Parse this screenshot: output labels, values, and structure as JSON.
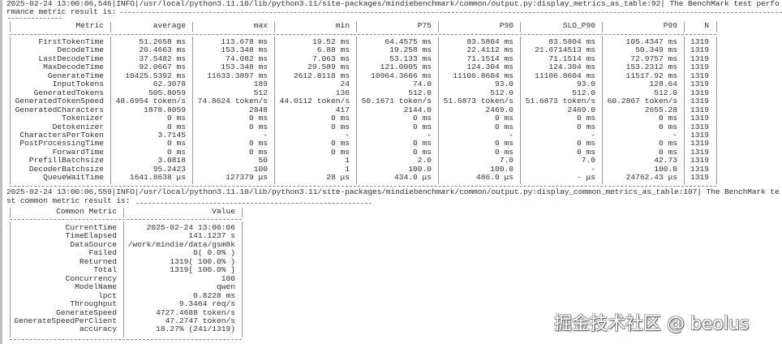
{
  "log_lines": {
    "metrics_log": "2025-02-24 13:00:06,546|INFO|/usr/local/python3.11.10/lib/python3.11/site-packages/mindiebenchmark/common/output.py:display_metrics_as_table:92| The BenchMark test perfo",
    "metrics_log_cont": "rmance metric result is:",
    "common_log": "2025-02-24 13:00:06,559|INFO|/usr/local/python3.11.10/lib/python3.11/site-packages/mindiebenchmark/common/output.py:display_common_metrics_as_table:107| The BenchMark te",
    "common_log_cont": "st common metric result is:"
  },
  "metrics_table": {
    "headers": [
      "Metric",
      "average",
      "max",
      "min",
      "P75",
      "P90",
      "SLO_P90",
      "P99",
      "N"
    ],
    "rows": [
      [
        "FirstTokenTime",
        "51.2658 ms",
        "113.678 ms",
        "19.52 ms",
        "64.4575 ms",
        "83.5804 ms",
        "83.5804 ms",
        "105.4347 ms",
        "1319"
      ],
      [
        "DecodeTime",
        "20.4663 ms",
        "153.348 ms",
        "6.88 ms",
        "19.258 ms",
        "22.4112 ms",
        "21.6714513 ms",
        "50.349 ms",
        "1319"
      ],
      [
        "LastDecodeTime",
        "37.5482 ms",
        "74.082 ms",
        "7.063 ms",
        "53.133 ms",
        "71.1514 ms",
        "71.1514 ms",
        "72.9757 ms",
        "1319"
      ],
      [
        "MaxDecodeTime",
        "92.0667 ms",
        "153.348 ms",
        "29.589 ms",
        "121.0005 ms",
        "124.304 ms",
        "124.304 ms",
        "153.2312 ms",
        "1319"
      ],
      [
        "GenerateTime",
        "10425.5392 ms",
        "11633.3897 ms",
        "2612.8118 ms",
        "10964.3666 ms",
        "11106.8604 ms",
        "11106.8604 ms",
        "11517.92 ms",
        "1319"
      ],
      [
        "InputTokens",
        "62.3078",
        "189",
        "24",
        "74.0",
        "93.0",
        "93.0",
        "128.64",
        "1319"
      ],
      [
        "GeneratedTokens",
        "505.8059",
        "512",
        "136",
        "512.0",
        "512.0",
        "512.0",
        "512.0",
        "1319"
      ],
      [
        "GeneratedTokenSpeed",
        "48.6954 token/s",
        "74.8624 token/s",
        "44.0112 token/s",
        "50.1671 token/s",
        "51.6873 token/s",
        "51.6873 token/s",
        "60.2867 token/s",
        "1319"
      ],
      [
        "GeneratedCharacters",
        "1878.8059",
        "2848",
        "417",
        "2144.0",
        "2469.0",
        "2469.0",
        "2655.28",
        "1319"
      ],
      [
        "Tokenizer",
        "0 ms",
        "0 ms",
        "0 ms",
        "0 ms",
        "0 ms",
        "0 ms",
        "0 ms",
        "1319"
      ],
      [
        "Detokenizer",
        "0 ms",
        "0 ms",
        "0 ms",
        "0 ms",
        "0 ms",
        "0 ms",
        "0 ms",
        "1319"
      ],
      [
        "CharactersPerToken",
        "3.7145",
        "-",
        "-",
        "-",
        "-",
        "-",
        "-",
        "1319"
      ],
      [
        "PostProcessingTime",
        "0 ms",
        "0 ms",
        "0 ms",
        "0 ms",
        "0 ms",
        "0 ms",
        "0 ms",
        "1319"
      ],
      [
        "ForwardTime",
        "0 ms",
        "0 ms",
        "0 ms",
        "0 ms",
        "0 ms",
        "0 ms",
        "0 ms",
        "1319"
      ],
      [
        "PrefillBatchsize",
        "3.0818",
        "50",
        "1",
        "2.0",
        "7.0",
        "7.0",
        "42.73",
        "1319"
      ],
      [
        "DecoderBatchsize",
        "95.2423",
        "100",
        "1",
        "100.0",
        "100.0",
        "-",
        "100.0",
        "1319"
      ],
      [
        "QueueWaitTime",
        "1641.8638 μs",
        "127379 μs",
        "28 μs",
        "434.0 μs",
        "486.0 μs",
        "- μs",
        "24762.43 μs",
        "1319"
      ]
    ]
  },
  "common_table": {
    "headers": [
      "Common Metric",
      "Value"
    ],
    "rows": [
      [
        "CurrentTime",
        "2025-02-24 13:00:06"
      ],
      [
        "TimeElapsed",
        "141.1237 s"
      ],
      [
        "DataSource",
        "/work/mindie/data/gsm8k"
      ],
      [
        "Failed",
        "0( 0.0% )"
      ],
      [
        "Returned",
        "1319( 100.0% )"
      ],
      [
        "Total",
        "1319[ 100.0% ]"
      ],
      [
        "Concurrency",
        "100"
      ],
      [
        "ModelName",
        "qwen"
      ],
      [
        "lpct",
        "0.8228 ms"
      ],
      [
        "Throughput",
        "9.3464 req/s"
      ],
      [
        "GenerateSpeed",
        "4727.4688 token/s"
      ],
      [
        "GenerateSpeedPerClient",
        "47.2747 token/s"
      ],
      [
        "accuracy",
        "18.27% (241/1319)"
      ]
    ]
  },
  "watermark": "掘金技术社区 @ beolus"
}
